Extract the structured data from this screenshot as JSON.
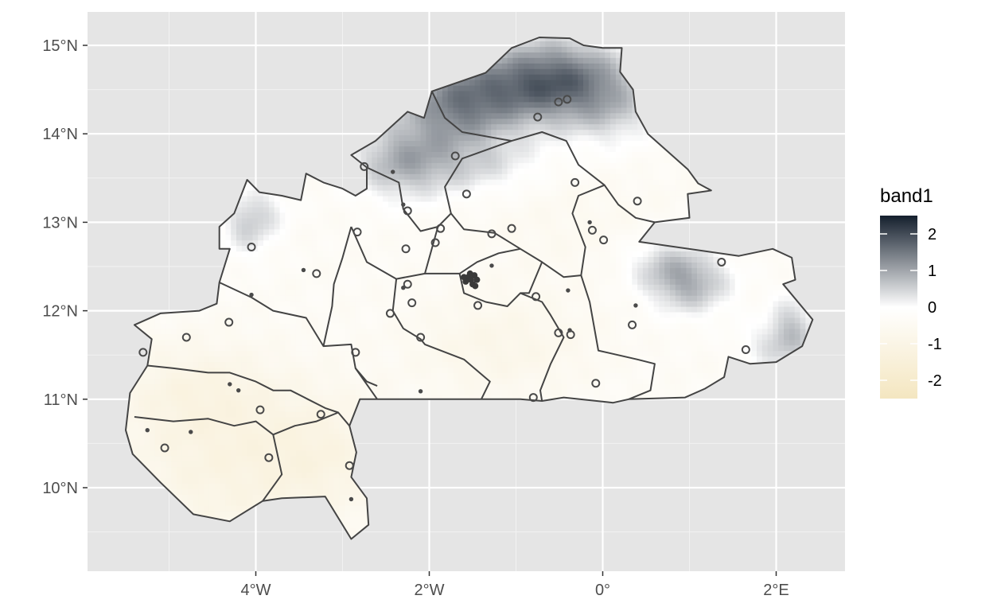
{
  "chart_data": {
    "type": "heatmap",
    "title": "",
    "xlabel": "",
    "ylabel": "",
    "x_ticks": [
      {
        "label": "4°W",
        "value": -4
      },
      {
        "label": "2°W",
        "value": -2
      },
      {
        "label": "0°",
        "value": 0
      },
      {
        "label": "2°E",
        "value": 2
      }
    ],
    "y_ticks": [
      {
        "label": "15°N",
        "value": 15
      },
      {
        "label": "14°N",
        "value": 14
      },
      {
        "label": "13°N",
        "value": 13
      },
      {
        "label": "12°N",
        "value": 12
      },
      {
        "label": "11°N",
        "value": 11
      },
      {
        "label": "10°N",
        "value": 10
      }
    ],
    "xlim": [
      -5.8,
      2.8
    ],
    "ylim": [
      9.1,
      15.4
    ],
    "grid": true,
    "legend": {
      "title": "band1",
      "position": "right",
      "range": [
        -2.5,
        2.5
      ],
      "ticks": [
        "2",
        "1",
        "0",
        "-1",
        "-2"
      ],
      "tick_values": [
        2,
        1,
        0,
        -1,
        -2
      ],
      "colors": [
        "#f4e6c0",
        "#ffffff",
        "#141f2d"
      ]
    },
    "country_outline": [
      [
        -4.1,
        13.48
      ],
      [
        -3.96,
        13.34
      ],
      [
        -3.7,
        13.3
      ],
      [
        -3.48,
        13.25
      ],
      [
        -3.42,
        13.55
      ],
      [
        -3.22,
        13.45
      ],
      [
        -3.0,
        13.38
      ],
      [
        -2.85,
        13.3
      ],
      [
        -2.72,
        13.38
      ],
      [
        -2.72,
        13.62
      ],
      [
        -2.9,
        13.76
      ],
      [
        -2.62,
        13.92
      ],
      [
        -2.25,
        14.25
      ],
      [
        -2.06,
        14.18
      ],
      [
        -1.97,
        14.48
      ],
      [
        -1.35,
        14.69
      ],
      [
        -1.05,
        14.97
      ],
      [
        -0.73,
        15.09
      ],
      [
        -0.38,
        15.08
      ],
      [
        -0.22,
        15.0
      ],
      [
        0.0,
        14.97
      ],
      [
        0.22,
        14.97
      ],
      [
        0.2,
        14.7
      ],
      [
        0.35,
        14.5
      ],
      [
        0.38,
        14.25
      ],
      [
        0.52,
        14.0
      ],
      [
        0.98,
        13.6
      ],
      [
        1.1,
        13.44
      ],
      [
        1.25,
        13.36
      ],
      [
        0.98,
        13.32
      ],
      [
        1.0,
        13.05
      ],
      [
        0.6,
        13.0
      ],
      [
        0.42,
        12.78
      ],
      [
        1.57,
        12.62
      ],
      [
        1.96,
        12.7
      ],
      [
        2.18,
        12.6
      ],
      [
        2.22,
        12.35
      ],
      [
        2.08,
        12.3
      ],
      [
        2.42,
        11.9
      ],
      [
        2.3,
        11.6
      ],
      [
        2.0,
        11.42
      ],
      [
        1.7,
        11.4
      ],
      [
        1.45,
        11.48
      ],
      [
        1.4,
        11.25
      ],
      [
        1.18,
        11.12
      ],
      [
        0.95,
        11.02
      ],
      [
        0.3,
        11.0
      ],
      [
        0.12,
        10.96
      ],
      [
        -0.45,
        11.02
      ],
      [
        -0.7,
        10.98
      ],
      [
        -0.95,
        11.0
      ],
      [
        -1.6,
        11.0
      ],
      [
        -2.8,
        11.0
      ],
      [
        -2.92,
        10.7
      ],
      [
        -2.84,
        10.4
      ],
      [
        -2.9,
        10.12
      ],
      [
        -2.72,
        9.88
      ],
      [
        -2.7,
        9.58
      ],
      [
        -2.9,
        9.42
      ],
      [
        -3.2,
        9.9
      ],
      [
        -3.7,
        9.88
      ],
      [
        -3.92,
        9.85
      ],
      [
        -4.3,
        9.62
      ],
      [
        -4.72,
        9.7
      ],
      [
        -5.1,
        10.06
      ],
      [
        -5.42,
        10.38
      ],
      [
        -5.5,
        10.65
      ],
      [
        -5.45,
        11.07
      ],
      [
        -5.25,
        11.38
      ],
      [
        -5.2,
        11.68
      ],
      [
        -5.4,
        11.84
      ],
      [
        -5.1,
        11.97
      ],
      [
        -4.65,
        12.0
      ],
      [
        -4.45,
        12.08
      ],
      [
        -4.42,
        12.32
      ],
      [
        -4.3,
        12.7
      ],
      [
        -4.42,
        12.7
      ],
      [
        -4.42,
        12.95
      ],
      [
        -4.25,
        13.1
      ],
      [
        -4.1,
        13.48
      ]
    ],
    "region_boundaries": [
      [
        [
          -2.72,
          13.62
        ],
        [
          -2.35,
          13.45
        ],
        [
          -2.3,
          13.15
        ],
        [
          -2.1,
          12.9
        ],
        [
          -1.9,
          12.95
        ],
        [
          -1.75,
          13.1
        ],
        [
          -1.6,
          12.92
        ],
        [
          -1.25,
          12.88
        ],
        [
          -0.95,
          12.7
        ],
        [
          -0.7,
          12.55
        ],
        [
          -0.45,
          12.38
        ],
        [
          -0.25,
          12.4
        ],
        [
          -0.2,
          12.72
        ],
        [
          -0.35,
          13.1
        ],
        [
          -0.28,
          13.3
        ],
        [
          0.02,
          13.42
        ],
        [
          0.18,
          13.2
        ],
        [
          0.38,
          13.05
        ],
        [
          0.6,
          13.0
        ]
      ],
      [
        [
          -1.97,
          14.48
        ],
        [
          -1.82,
          14.18
        ],
        [
          -1.62,
          14.02
        ],
        [
          -1.05,
          13.92
        ],
        [
          -0.7,
          14.02
        ],
        [
          -0.42,
          13.92
        ],
        [
          -0.28,
          13.65
        ],
        [
          0.02,
          13.42
        ]
      ],
      [
        [
          -1.75,
          13.1
        ],
        [
          -1.82,
          13.4
        ],
        [
          -1.62,
          13.72
        ],
        [
          -1.05,
          13.92
        ]
      ],
      [
        [
          -2.9,
          12.95
        ],
        [
          -2.72,
          12.55
        ],
        [
          -2.38,
          12.36
        ],
        [
          -2.05,
          12.42
        ],
        [
          -1.9,
          12.95
        ]
      ],
      [
        [
          -2.38,
          12.36
        ],
        [
          -2.42,
          12.0
        ],
        [
          -2.3,
          11.8
        ],
        [
          -2.1,
          11.68
        ],
        [
          -2.05,
          11.62
        ],
        [
          -1.6,
          11.45
        ],
        [
          -1.3,
          11.2
        ],
        [
          -1.4,
          11.0
        ]
      ],
      [
        [
          -2.05,
          12.42
        ],
        [
          -1.65,
          12.42
        ],
        [
          -1.45,
          12.55
        ],
        [
          -1.2,
          12.65
        ],
        [
          -0.95,
          12.7
        ]
      ],
      [
        [
          -1.65,
          12.42
        ],
        [
          -1.6,
          12.2
        ],
        [
          -1.35,
          12.1
        ],
        [
          -1.1,
          12.05
        ],
        [
          -0.95,
          12.2
        ],
        [
          -0.7,
          12.1
        ],
        [
          -0.6,
          11.95
        ],
        [
          -0.45,
          11.7
        ],
        [
          -0.6,
          11.4
        ],
        [
          -0.72,
          11.1
        ],
        [
          -0.7,
          10.98
        ]
      ],
      [
        [
          -0.7,
          12.55
        ],
        [
          -0.85,
          12.2
        ],
        [
          -0.95,
          12.2
        ]
      ],
      [
        [
          -0.25,
          12.4
        ],
        [
          -0.15,
          12.1
        ],
        [
          -0.05,
          11.55
        ],
        [
          0.4,
          11.45
        ],
        [
          0.6,
          11.4
        ],
        [
          0.55,
          11.1
        ],
        [
          0.3,
          11.0
        ]
      ],
      [
        [
          -4.42,
          12.32
        ],
        [
          -4.05,
          12.15
        ],
        [
          -3.8,
          12.0
        ],
        [
          -3.42,
          11.92
        ],
        [
          -3.22,
          11.6
        ],
        [
          -2.9,
          11.62
        ],
        [
          -2.85,
          11.35
        ],
        [
          -2.72,
          11.2
        ],
        [
          -2.6,
          11.15
        ]
      ],
      [
        [
          -2.9,
          12.95
        ],
        [
          -3.0,
          12.6
        ],
        [
          -3.1,
          12.3
        ],
        [
          -3.12,
          12.05
        ],
        [
          -3.22,
          11.6
        ]
      ],
      [
        [
          -5.25,
          11.38
        ],
        [
          -4.95,
          11.35
        ],
        [
          -4.55,
          11.3
        ],
        [
          -4.3,
          11.3
        ],
        [
          -4.0,
          11.2
        ],
        [
          -3.8,
          11.1
        ],
        [
          -3.6,
          11.1
        ],
        [
          -3.4,
          11.0
        ],
        [
          -3.2,
          10.9
        ],
        [
          -3.05,
          10.85
        ],
        [
          -2.92,
          10.7
        ]
      ],
      [
        [
          -5.4,
          10.8
        ],
        [
          -4.95,
          10.75
        ],
        [
          -4.55,
          10.78
        ],
        [
          -4.25,
          10.7
        ],
        [
          -4.0,
          10.75
        ],
        [
          -3.8,
          10.6
        ],
        [
          -3.7,
          10.15
        ],
        [
          -3.92,
          9.85
        ]
      ],
      [
        [
          -3.8,
          10.6
        ],
        [
          -3.55,
          10.7
        ],
        [
          -3.3,
          10.75
        ],
        [
          -3.05,
          10.85
        ]
      ],
      [
        [
          -2.85,
          11.35
        ],
        [
          -2.6,
          11.0
        ]
      ]
    ],
    "raster_anomalies": [
      {
        "lon": -1.1,
        "lat": 14.55,
        "value": 1.3,
        "sx": 0.75,
        "sy": 0.32
      },
      {
        "lon": -0.45,
        "lat": 14.62,
        "value": 1.2,
        "sx": 0.5,
        "sy": 0.35
      },
      {
        "lon": -1.7,
        "lat": 14.25,
        "value": 1.1,
        "sx": 0.45,
        "sy": 0.3
      },
      {
        "lon": -2.35,
        "lat": 13.7,
        "value": 1.0,
        "sx": 0.4,
        "sy": 0.32
      },
      {
        "lon": -1.5,
        "lat": 13.65,
        "value": 0.7,
        "sx": 0.6,
        "sy": 0.25
      },
      {
        "lon": 0.15,
        "lat": 14.3,
        "value": 0.6,
        "sx": 0.35,
        "sy": 0.35
      },
      {
        "lon": 1.0,
        "lat": 12.3,
        "value": 1.1,
        "sx": 0.35,
        "sy": 0.25
      },
      {
        "lon": 0.7,
        "lat": 12.55,
        "value": 0.6,
        "sx": 0.35,
        "sy": 0.22
      },
      {
        "lon": 2.2,
        "lat": 11.8,
        "value": 0.9,
        "sx": 0.2,
        "sy": 0.28
      },
      {
        "lon": 1.9,
        "lat": 11.6,
        "value": 0.5,
        "sx": 0.25,
        "sy": 0.2
      },
      {
        "lon": -4.1,
        "lat": 12.95,
        "value": 0.7,
        "sx": 0.22,
        "sy": 0.25
      },
      {
        "lon": -3.9,
        "lat": 13.15,
        "value": 0.4,
        "sx": 0.25,
        "sy": 0.2
      },
      {
        "lon": -4.3,
        "lat": 10.2,
        "value": -0.7,
        "sx": 0.9,
        "sy": 0.6
      },
      {
        "lon": -3.2,
        "lat": 10.4,
        "value": -0.5,
        "sx": 0.5,
        "sy": 0.5
      },
      {
        "lon": -4.7,
        "lat": 11.1,
        "value": -0.6,
        "sx": 0.7,
        "sy": 0.4
      },
      {
        "lon": -1.2,
        "lat": 11.6,
        "value": -0.5,
        "sx": 0.7,
        "sy": 0.4
      },
      {
        "lon": -0.4,
        "lat": 13.0,
        "value": -0.2,
        "sx": 0.8,
        "sy": 0.5
      }
    ],
    "points_large": [
      [
        -0.41,
        14.39
      ],
      [
        -0.51,
        14.36
      ],
      [
        -0.75,
        14.19
      ],
      [
        -2.75,
        13.63
      ],
      [
        -1.7,
        13.75
      ],
      [
        -1.57,
        13.32
      ],
      [
        -0.32,
        13.45
      ],
      [
        0.4,
        13.24
      ],
      [
        -2.25,
        13.13
      ],
      [
        -1.87,
        12.93
      ],
      [
        -2.83,
        12.89
      ],
      [
        -1.28,
        12.87
      ],
      [
        -1.05,
        12.93
      ],
      [
        -0.12,
        12.91
      ],
      [
        0.01,
        12.8
      ],
      [
        -4.05,
        12.72
      ],
      [
        -1.93,
        12.77
      ],
      [
        -2.27,
        12.7
      ],
      [
        -3.3,
        12.42
      ],
      [
        -1.5,
        12.36
      ],
      [
        1.37,
        12.55
      ],
      [
        -2.25,
        12.3
      ],
      [
        -2.2,
        12.09
      ],
      [
        -0.77,
        12.16
      ],
      [
        -1.44,
        12.06
      ],
      [
        -4.31,
        11.87
      ],
      [
        -2.45,
        11.97
      ],
      [
        0.34,
        11.84
      ],
      [
        -4.8,
        11.7
      ],
      [
        -2.1,
        11.7
      ],
      [
        -0.51,
        11.75
      ],
      [
        -0.37,
        11.73
      ],
      [
        -5.3,
        11.53
      ],
      [
        -2.85,
        11.53
      ],
      [
        1.65,
        11.56
      ],
      [
        -0.08,
        11.18
      ],
      [
        -0.8,
        11.02
      ],
      [
        -3.95,
        10.88
      ],
      [
        -3.25,
        10.83
      ],
      [
        -5.05,
        10.45
      ],
      [
        -3.85,
        10.34
      ],
      [
        -2.92,
        10.25
      ]
    ],
    "points_small": [
      [
        -2.42,
        13.57
      ],
      [
        -2.3,
        13.2
      ],
      [
        -3.45,
        12.46
      ],
      [
        -4.05,
        12.18
      ],
      [
        -1.28,
        12.51
      ],
      [
        -0.4,
        12.23
      ],
      [
        0.38,
        12.06
      ],
      [
        -2.3,
        12.26
      ],
      [
        -4.3,
        11.17
      ],
      [
        -4.2,
        11.1
      ],
      [
        -5.25,
        10.65
      ],
      [
        -4.75,
        10.63
      ],
      [
        -2.1,
        11.09
      ],
      [
        -0.15,
        13.0
      ],
      [
        -2.9,
        9.87
      ],
      [
        -0.38,
        11.78
      ]
    ],
    "ouaga_cluster": [
      [
        -1.55,
        12.38
      ],
      [
        -1.52,
        12.35
      ],
      [
        -1.48,
        12.4
      ],
      [
        -1.58,
        12.33
      ],
      [
        -1.5,
        12.3
      ],
      [
        -1.45,
        12.35
      ],
      [
        -1.53,
        12.42
      ],
      [
        -1.6,
        12.38
      ],
      [
        -1.47,
        12.28
      ]
    ]
  }
}
